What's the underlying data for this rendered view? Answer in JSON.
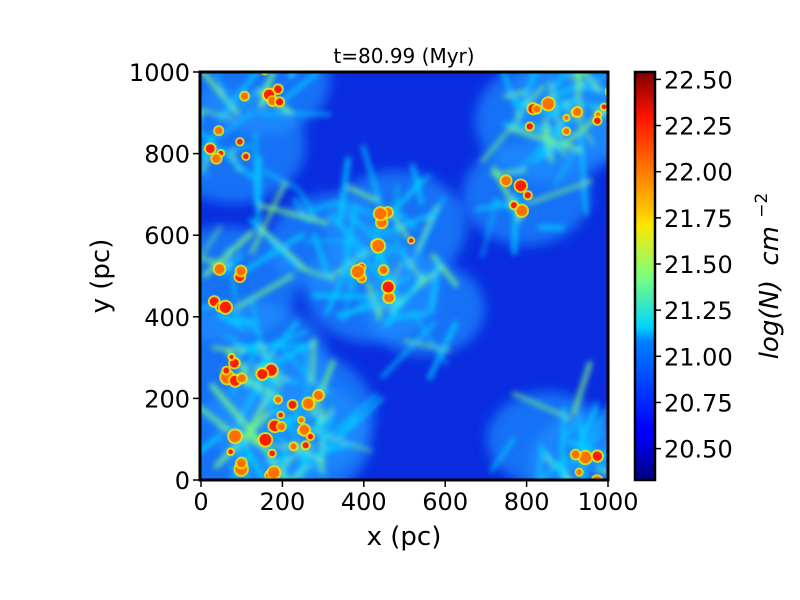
{
  "chart_data": {
    "type": "heatmap",
    "title": "t=80.99 (Myr)",
    "xlabel": "x (pc)",
    "ylabel": "y (pc)",
    "xlim": [
      0,
      1000
    ],
    "ylim": [
      0,
      1000
    ],
    "x_ticks": [
      0,
      200,
      400,
      600,
      800,
      1000
    ],
    "y_ticks": [
      0,
      200,
      400,
      600,
      800,
      1000
    ],
    "colorbar": {
      "label_main": "log(N)",
      "label_unit": "cm",
      "label_exp": "−2",
      "colormap": "jet",
      "range": [
        20.33,
        22.54
      ],
      "ticks": [
        "20.50",
        "20.75",
        "21.00",
        "21.25",
        "21.50",
        "21.75",
        "22.00",
        "22.25",
        "22.50"
      ]
    },
    "grid": false,
    "description_features": [
      {
        "x": 120,
        "y": 280,
        "weight": 1.0
      },
      {
        "x": 230,
        "y": 160,
        "weight": 1.0
      },
      {
        "x": 120,
        "y": 60,
        "weight": 0.9
      },
      {
        "x": 230,
        "y": 100,
        "weight": 0.9
      },
      {
        "x": 80,
        "y": 820,
        "weight": 0.8
      },
      {
        "x": 480,
        "y": 620,
        "weight": 0.75
      },
      {
        "x": 420,
        "y": 470,
        "weight": 0.7
      },
      {
        "x": 320,
        "y": 580,
        "weight": 0.55
      },
      {
        "x": 860,
        "y": 880,
        "weight": 0.9
      },
      {
        "x": 950,
        "y": 930,
        "weight": 0.85
      },
      {
        "x": 800,
        "y": 700,
        "weight": 0.6
      },
      {
        "x": 60,
        "y": 480,
        "weight": 0.8
      },
      {
        "x": 550,
        "y": 420,
        "weight": 0.5
      },
      {
        "x": 850,
        "y": 100,
        "weight": 0.5
      },
      {
        "x": 960,
        "y": 40,
        "weight": 0.6
      },
      {
        "x": 150,
        "y": 980,
        "weight": 0.7
      }
    ]
  }
}
